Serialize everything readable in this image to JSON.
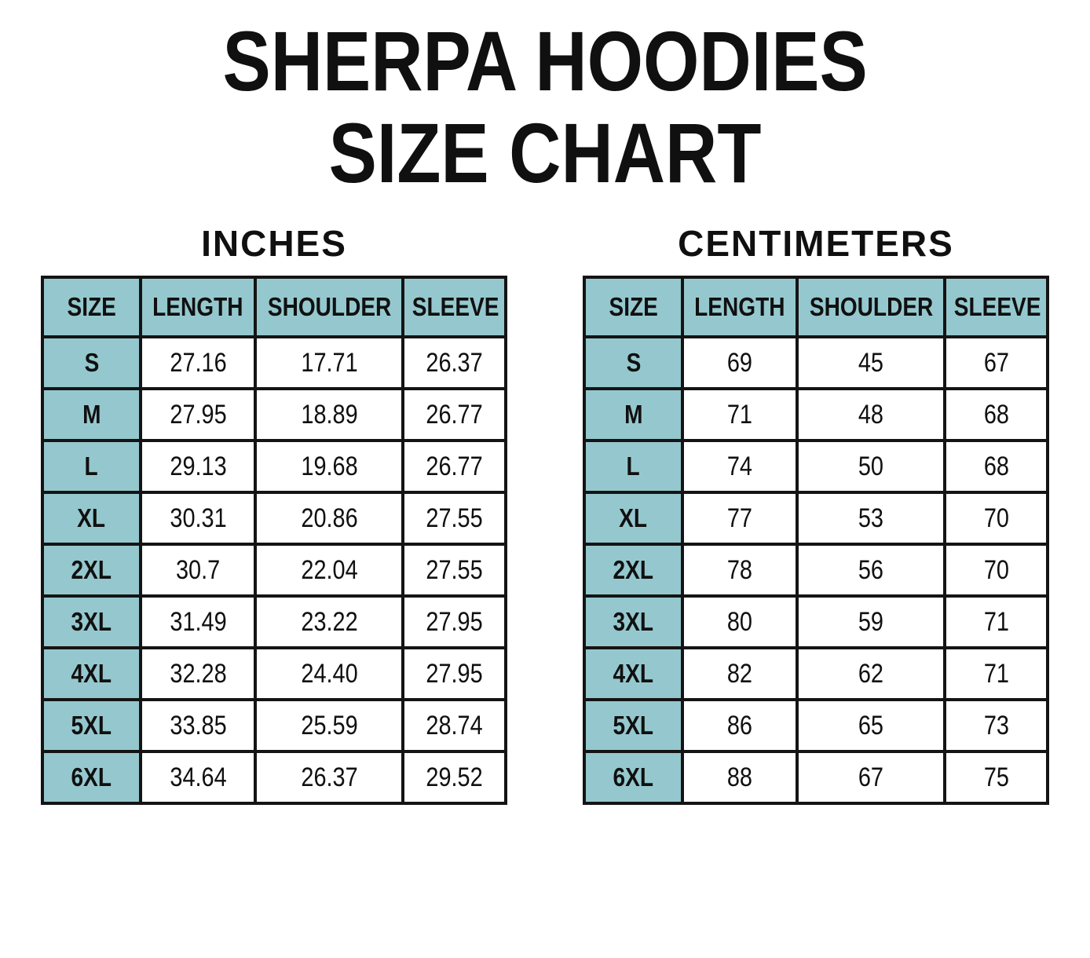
{
  "page_title": {
    "line1": "SHERPA HOODIES",
    "line2": "SIZE CHART"
  },
  "colors": {
    "header_bg": "#95C8CE",
    "border": "#141414",
    "text": "#101010",
    "page_bg": "#FFFFFF"
  },
  "chart_data": [
    {
      "type": "table",
      "title": "INCHES",
      "unit": "inches",
      "columns": [
        "SIZE",
        "LENGTH",
        "SHOULDER",
        "SLEEVE"
      ],
      "rows": [
        [
          "S",
          "27.16",
          "17.71",
          "26.37"
        ],
        [
          "M",
          "27.95",
          "18.89",
          "26.77"
        ],
        [
          "L",
          "29.13",
          "19.68",
          "26.77"
        ],
        [
          "XL",
          "30.31",
          "20.86",
          "27.55"
        ],
        [
          "2XL",
          "30.7",
          "22.04",
          "27.55"
        ],
        [
          "3XL",
          "31.49",
          "23.22",
          "27.95"
        ],
        [
          "4XL",
          "32.28",
          "24.40",
          "27.95"
        ],
        [
          "5XL",
          "33.85",
          "25.59",
          "28.74"
        ],
        [
          "6XL",
          "34.64",
          "26.37",
          "29.52"
        ]
      ]
    },
    {
      "type": "table",
      "title": "CENTIMETERS",
      "unit": "centimeters",
      "columns": [
        "SIZE",
        "LENGTH",
        "SHOULDER",
        "SLEEVE"
      ],
      "rows": [
        [
          "S",
          "69",
          "45",
          "67"
        ],
        [
          "M",
          "71",
          "48",
          "68"
        ],
        [
          "L",
          "74",
          "50",
          "68"
        ],
        [
          "XL",
          "77",
          "53",
          "70"
        ],
        [
          "2XL",
          "78",
          "56",
          "70"
        ],
        [
          "3XL",
          "80",
          "59",
          "71"
        ],
        [
          "4XL",
          "82",
          "62",
          "71"
        ],
        [
          "5XL",
          "86",
          "65",
          "73"
        ],
        [
          "6XL",
          "88",
          "67",
          "75"
        ]
      ]
    }
  ]
}
